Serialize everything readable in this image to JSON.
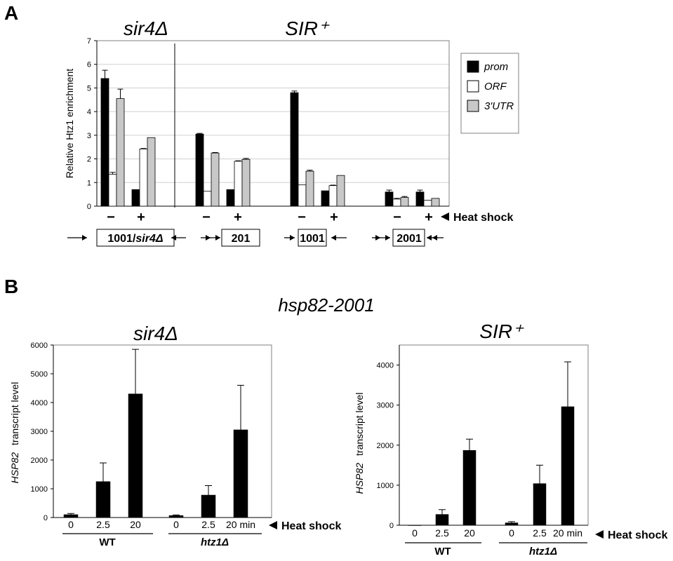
{
  "figure": {
    "panel_a_letter": "A",
    "panel_b_letter": "B",
    "panel_b_main_title": "hsp82-2001"
  },
  "chart_data": [
    {
      "type": "bar",
      "panel": "A",
      "titles": [
        "sir4Δ",
        "SIR⁺"
      ],
      "ylabel": "Relative Htz1 enrichment",
      "ylim": [
        0,
        7
      ],
      "yticks": [
        0,
        1,
        2,
        3,
        4,
        5,
        6,
        7
      ],
      "grid": true,
      "legend_position": "right",
      "series": [
        {
          "name": "prom",
          "color": "#000000",
          "values": [
            5.4,
            0.7,
            3.05,
            0.7,
            4.8,
            0.65,
            0.6,
            0.6
          ],
          "errors": [
            0.35,
            0.0,
            0.03,
            0.0,
            0.07,
            0.0,
            0.08,
            0.08
          ]
        },
        {
          "name": "ORF",
          "color": "#ffffff",
          "values": [
            1.35,
            2.42,
            0.63,
            1.9,
            0.9,
            0.87,
            0.3,
            0.25
          ],
          "errors": [
            0.08,
            0.02,
            0.0,
            0.02,
            0.0,
            0.02,
            0.03,
            0.0
          ]
        },
        {
          "name": "3'UTR",
          "color": "#c8c8c8",
          "values": [
            4.55,
            2.9,
            2.25,
            1.98,
            1.48,
            1.3,
            0.37,
            0.33
          ],
          "errors": [
            0.4,
            0.0,
            0.02,
            0.04,
            0.04,
            0.0,
            0.04,
            0.0
          ]
        }
      ],
      "heat_shock_signs": [
        "−",
        "+",
        "−",
        "+",
        "−",
        "+",
        "−",
        "+"
      ],
      "heat_shock_label": "Heat shock",
      "constructs": [
        {
          "label_main": "1001/",
          "label_italic": "sir4Δ"
        },
        {
          "label_main": "201",
          "label_italic": ""
        },
        {
          "label_main": "1001",
          "label_italic": ""
        },
        {
          "label_main": "2001",
          "label_italic": ""
        }
      ]
    },
    {
      "type": "bar",
      "panel": "B-left",
      "title": "sir4Δ",
      "ylabel_italic": "HSP82",
      "ylabel_rest": "transcript level",
      "ylim": [
        0,
        6000
      ],
      "yticks": [
        0,
        1000,
        2000,
        3000,
        4000,
        5000,
        6000
      ],
      "categories": [
        "0",
        "2.5",
        "20",
        "0",
        "2.5",
        "20 min"
      ],
      "values": [
        100,
        1250,
        4300,
        70,
        780,
        3050
      ],
      "errors": [
        40,
        650,
        1550,
        20,
        330,
        1550
      ],
      "heat_shock_label": "Heat shock",
      "groups": [
        "WT",
        "htz1Δ"
      ]
    },
    {
      "type": "bar",
      "panel": "B-right",
      "title": "SIR⁺",
      "ylabel_italic": "HSP82",
      "ylabel_rest": "transcript level",
      "ylim": [
        0,
        4500
      ],
      "yticks": [
        0,
        1000,
        2000,
        3000,
        4000
      ],
      "categories": [
        "0",
        "2.5",
        "20",
        "0",
        "2.5",
        "20 min"
      ],
      "values": [
        0,
        270,
        1870,
        60,
        1040,
        2960
      ],
      "errors": [
        0,
        120,
        280,
        30,
        460,
        1120
      ],
      "heat_shock_label": "Heat shock",
      "groups": [
        "WT",
        "htz1Δ"
      ]
    }
  ]
}
